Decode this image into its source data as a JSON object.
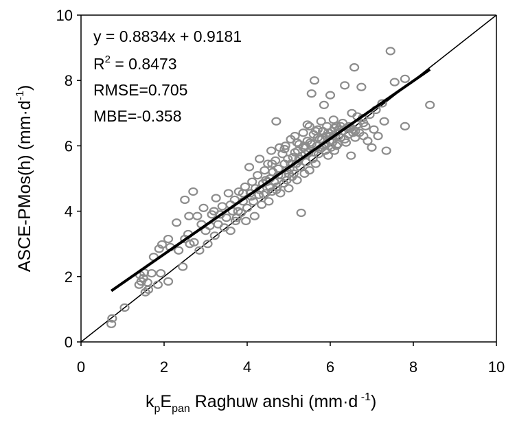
{
  "chart_data": {
    "type": "scatter",
    "xlim": [
      0,
      10
    ],
    "ylim": [
      0,
      10
    ],
    "xticks": [
      0,
      2,
      4,
      6,
      8,
      10
    ],
    "yticks": [
      0,
      2,
      4,
      6,
      8,
      10
    ],
    "grid": false,
    "xlabel": {
      "k": "k",
      "p": "p",
      "E": "E",
      "pan": "pan",
      "rest": " Raghuw anshi (mm·d",
      "exp": " -1",
      "close": ")"
    },
    "ylabel": {
      "main": "ASCE-PMos(h) (mm·d",
      "exp": "-1",
      "close": ")"
    },
    "stats": {
      "equation": "y = 0.8834x + 0.9181",
      "r2_prefix": "R",
      "r2_exp": "2",
      "r2_value": " = 0.8473",
      "rmse": "RMSE=0.705",
      "mbe": "MBE=-0.358"
    },
    "regression_line": {
      "slope": 0.8834,
      "intercept": 0.9181,
      "x_range": [
        0.73,
        8.4
      ]
    },
    "reference_line": {
      "slope": 1,
      "intercept": 0,
      "x_range": [
        0,
        10
      ]
    },
    "points": [
      [
        0.73,
        0.55
      ],
      [
        0.75,
        0.72
      ],
      [
        1.05,
        1.05
      ],
      [
        1.4,
        1.75
      ],
      [
        1.42,
        2.05
      ],
      [
        1.45,
        1.85
      ],
      [
        1.5,
        1.95
      ],
      [
        1.52,
        2.12
      ],
      [
        1.55,
        1.52
      ],
      [
        1.6,
        1.82
      ],
      [
        1.62,
        1.6
      ],
      [
        1.7,
        2.1
      ],
      [
        1.75,
        2.6
      ],
      [
        1.85,
        1.75
      ],
      [
        1.88,
        2.85
      ],
      [
        1.92,
        2.1
      ],
      [
        1.95,
        2.98
      ],
      [
        2.1,
        1.85
      ],
      [
        2.1,
        3.15
      ],
      [
        2.15,
        2.9
      ],
      [
        2.3,
        3.65
      ],
      [
        2.35,
        2.8
      ],
      [
        2.45,
        2.3
      ],
      [
        2.5,
        3.15
      ],
      [
        2.5,
        4.35
      ],
      [
        2.58,
        3.3
      ],
      [
        2.6,
        3.85
      ],
      [
        2.62,
        3.0
      ],
      [
        2.7,
        4.6
      ],
      [
        2.72,
        3.05
      ],
      [
        2.8,
        3.85
      ],
      [
        2.85,
        2.8
      ],
      [
        2.9,
        3.6
      ],
      [
        2.95,
        4.1
      ],
      [
        3.0,
        3.4
      ],
      [
        3.05,
        3.0
      ],
      [
        3.1,
        3.55
      ],
      [
        3.15,
        3.9
      ],
      [
        3.2,
        4.0
      ],
      [
        3.22,
        3.25
      ],
      [
        3.25,
        4.4
      ],
      [
        3.3,
        3.6
      ],
      [
        3.35,
        3.9
      ],
      [
        3.4,
        4.15
      ],
      [
        3.45,
        3.5
      ],
      [
        3.5,
        3.8
      ],
      [
        3.55,
        4.55
      ],
      [
        3.6,
        3.4
      ],
      [
        3.65,
        4.0
      ],
      [
        3.7,
        4.35
      ],
      [
        3.72,
        3.7
      ],
      [
        3.78,
        4.0
      ],
      [
        3.8,
        4.6
      ],
      [
        3.85,
        3.95
      ],
      [
        3.9,
        4.3
      ],
      [
        3.95,
        4.75
      ],
      [
        3.97,
        3.7
      ],
      [
        4.0,
        4.1
      ],
      [
        4.05,
        5.35
      ],
      [
        4.08,
        4.55
      ],
      [
        4.12,
        4.9
      ],
      [
        4.15,
        4.3
      ],
      [
        4.18,
        3.85
      ],
      [
        4.2,
        4.7
      ],
      [
        4.25,
        5.1
      ],
      [
        4.28,
        4.5
      ],
      [
        4.3,
        5.6
      ],
      [
        4.35,
        4.2
      ],
      [
        4.38,
        4.85
      ],
      [
        4.42,
        5.25
      ],
      [
        4.45,
        4.55
      ],
      [
        4.48,
        4.9
      ],
      [
        4.5,
        5.45
      ],
      [
        4.52,
        4.3
      ],
      [
        4.55,
        5.0
      ],
      [
        4.58,
        5.85
      ],
      [
        4.6,
        4.6
      ],
      [
        4.62,
        5.2
      ],
      [
        4.65,
        4.9
      ],
      [
        4.68,
        5.55
      ],
      [
        4.7,
        6.75
      ],
      [
        4.72,
        4.75
      ],
      [
        4.75,
        5.3
      ],
      [
        4.78,
        5.95
      ],
      [
        4.8,
        4.55
      ],
      [
        4.82,
        5.1
      ],
      [
        4.85,
        5.75
      ],
      [
        4.88,
        4.85
      ],
      [
        4.9,
        5.45
      ],
      [
        4.92,
        6.0
      ],
      [
        4.95,
        4.95
      ],
      [
        4.98,
        5.6
      ],
      [
        5.0,
        4.7
      ],
      [
        5.02,
        5.3
      ],
      [
        5.05,
        6.2
      ],
      [
        5.08,
        5.05
      ],
      [
        5.1,
        5.65
      ],
      [
        5.12,
        5.15
      ],
      [
        5.15,
        6.3
      ],
      [
        5.18,
        5.45
      ],
      [
        5.2,
        4.95
      ],
      [
        5.22,
        5.85
      ],
      [
        5.25,
        6.05
      ],
      [
        5.28,
        5.35
      ],
      [
        5.3,
        3.95
      ],
      [
        5.32,
        5.7
      ],
      [
        5.35,
        6.4
      ],
      [
        5.38,
        5.15
      ],
      [
        5.4,
        6.0
      ],
      [
        5.42,
        5.5
      ],
      [
        5.45,
        6.65
      ],
      [
        5.48,
        5.8
      ],
      [
        5.5,
        5.25
      ],
      [
        5.52,
        6.1
      ],
      [
        5.55,
        7.6
      ],
      [
        5.58,
        5.6
      ],
      [
        5.6,
        6.35
      ],
      [
        5.62,
        8.0
      ],
      [
        5.65,
        5.45
      ],
      [
        5.68,
        6.0
      ],
      [
        5.7,
        6.5
      ],
      [
        5.72,
        5.75
      ],
      [
        5.75,
        6.2
      ],
      [
        5.78,
        6.75
      ],
      [
        5.8,
        5.95
      ],
      [
        5.82,
        6.45
      ],
      [
        5.85,
        7.25
      ],
      [
        5.88,
        5.85
      ],
      [
        5.9,
        6.3
      ],
      [
        5.92,
        6.6
      ],
      [
        5.95,
        5.7
      ],
      [
        5.98,
        6.15
      ],
      [
        6.0,
        7.55
      ],
      [
        6.02,
        5.95
      ],
      [
        6.05,
        6.45
      ],
      [
        6.08,
        6.8
      ],
      [
        6.1,
        5.85
      ],
      [
        6.12,
        6.3
      ],
      [
        6.15,
        6.6
      ],
      [
        6.18,
        6.05
      ],
      [
        6.2,
        6.5
      ],
      [
        6.25,
        6.25
      ],
      [
        6.3,
        6.7
      ],
      [
        6.35,
        7.85
      ],
      [
        6.38,
        6.1
      ],
      [
        6.4,
        6.55
      ],
      [
        6.45,
        6.35
      ],
      [
        6.5,
        5.7
      ],
      [
        6.52,
        7.0
      ],
      [
        6.55,
        6.5
      ],
      [
        6.58,
        8.4
      ],
      [
        6.6,
        6.25
      ],
      [
        6.65,
        6.65
      ],
      [
        6.7,
        6.4
      ],
      [
        6.75,
        7.8
      ],
      [
        6.78,
        6.85
      ],
      [
        6.8,
        6.3
      ],
      [
        6.85,
        6.6
      ],
      [
        6.9,
        6.15
      ],
      [
        6.95,
        6.95
      ],
      [
        7.0,
        5.95
      ],
      [
        7.05,
        6.5
      ],
      [
        7.1,
        7.1
      ],
      [
        7.15,
        6.3
      ],
      [
        7.25,
        7.3
      ],
      [
        7.3,
        6.75
      ],
      [
        7.35,
        5.85
      ],
      [
        7.45,
        8.9
      ],
      [
        7.55,
        7.95
      ],
      [
        7.8,
        8.05
      ],
      [
        7.8,
        6.6
      ],
      [
        8.4,
        7.25
      ],
      [
        4.45,
        4.95
      ],
      [
        4.55,
        4.75
      ],
      [
        4.7,
        4.65
      ],
      [
        4.95,
        5.25
      ],
      [
        5.05,
        5.45
      ],
      [
        5.15,
        5.8
      ],
      [
        5.25,
        5.6
      ],
      [
        5.35,
        5.95
      ],
      [
        5.45,
        6.15
      ],
      [
        5.55,
        6.05
      ],
      [
        5.6,
        5.8
      ],
      [
        5.7,
        6.25
      ],
      [
        5.75,
        5.9
      ],
      [
        5.8,
        6.2
      ],
      [
        5.85,
        6.0
      ],
      [
        5.95,
        6.4
      ],
      [
        6.05,
        6.1
      ],
      [
        6.1,
        6.55
      ],
      [
        6.2,
        6.3
      ],
      [
        6.3,
        6.45
      ],
      [
        6.45,
        6.6
      ],
      [
        6.55,
        6.4
      ],
      [
        6.65,
        6.9
      ],
      [
        6.8,
        6.7
      ],
      [
        3.9,
        4.55
      ],
      [
        4.1,
        4.45
      ],
      [
        4.3,
        4.65
      ],
      [
        4.4,
        4.5
      ],
      [
        3.6,
        4.2
      ],
      [
        3.75,
        3.8
      ],
      [
        4.9,
        5.9
      ],
      [
        5.2,
        6.1
      ],
      [
        5.5,
        6.6
      ],
      [
        5.65,
        6.45
      ],
      [
        4.6,
        5.45
      ],
      [
        4.75,
        5.1
      ],
      [
        5.0,
        5.15
      ],
      [
        5.4,
        5.75
      ],
      [
        5.9,
        6.05
      ],
      [
        6.0,
        6.3
      ],
      [
        6.15,
        6.0
      ],
      [
        6.25,
        6.6
      ],
      [
        6.35,
        6.2
      ],
      [
        6.5,
        6.55
      ],
      [
        6.6,
        6.45
      ]
    ]
  }
}
